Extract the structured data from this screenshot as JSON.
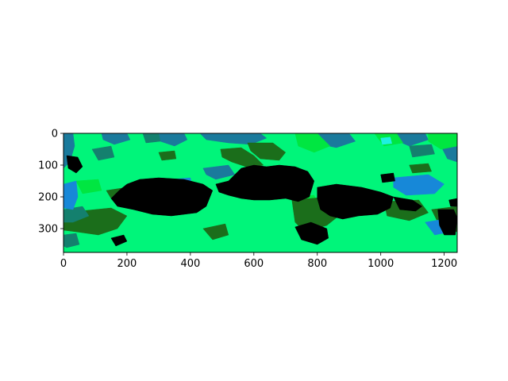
{
  "chart_data": {
    "type": "heatmap",
    "title": "",
    "xlabel": "",
    "ylabel": "",
    "xlim": [
      0,
      1241
    ],
    "ylim": [
      375,
      0
    ],
    "x_ticks": [
      0,
      200,
      400,
      600,
      800,
      1000,
      1200
    ],
    "y_ticks": [
      0,
      100,
      200,
      300
    ],
    "x_tick_labels": [
      "0",
      "200",
      "400",
      "600",
      "800",
      "1000",
      "1200"
    ],
    "y_tick_labels": [
      "0",
      "100",
      "200",
      "300"
    ],
    "grid": false,
    "legend": "none",
    "colors": {
      "bright_green": "#00f57a",
      "lime": "#00e641",
      "dark_green": "#1b6e1b",
      "teal": "#14806e",
      "steel_blue": "#1a7a9c",
      "azure": "#1788d8",
      "cyan": "#1ef0e0",
      "black": "#000000"
    },
    "regions": [
      {
        "class": "bright_green",
        "points": [
          [
            0,
            0
          ],
          [
            1241,
            0
          ],
          [
            1241,
            375
          ],
          [
            0,
            375
          ]
        ]
      },
      {
        "class": "steel_blue",
        "points": [
          [
            0,
            0
          ],
          [
            30,
            0
          ],
          [
            35,
            40
          ],
          [
            20,
            90
          ],
          [
            0,
            110
          ]
        ]
      },
      {
        "class": "steel_blue",
        "points": [
          [
            120,
            0
          ],
          [
            200,
            0
          ],
          [
            210,
            20
          ],
          [
            160,
            35
          ],
          [
            125,
            20
          ]
        ]
      },
      {
        "class": "steel_blue",
        "points": [
          [
            300,
            0
          ],
          [
            380,
            0
          ],
          [
            390,
            20
          ],
          [
            350,
            40
          ],
          [
            305,
            25
          ]
        ]
      },
      {
        "class": "steel_blue",
        "points": [
          [
            430,
            0
          ],
          [
            620,
            0
          ],
          [
            640,
            15
          ],
          [
            590,
            35
          ],
          [
            520,
            30
          ],
          [
            450,
            20
          ]
        ]
      },
      {
        "class": "steel_blue",
        "points": [
          [
            780,
            0
          ],
          [
            900,
            0
          ],
          [
            920,
            25
          ],
          [
            860,
            45
          ],
          [
            790,
            30
          ]
        ]
      },
      {
        "class": "steel_blue",
        "points": [
          [
            1050,
            0
          ],
          [
            1140,
            0
          ],
          [
            1150,
            20
          ],
          [
            1090,
            40
          ],
          [
            1055,
            25
          ]
        ]
      },
      {
        "class": "steel_blue",
        "points": [
          [
            1170,
            10
          ],
          [
            1241,
            5
          ],
          [
            1241,
            90
          ],
          [
            1210,
            80
          ],
          [
            1190,
            40
          ]
        ]
      },
      {
        "class": "steel_blue",
        "points": [
          [
            440,
            110
          ],
          [
            520,
            100
          ],
          [
            540,
            130
          ],
          [
            480,
            145
          ],
          [
            450,
            130
          ]
        ]
      },
      {
        "class": "lime",
        "points": [
          [
            730,
            0
          ],
          [
            800,
            0
          ],
          [
            840,
            40
          ],
          [
            790,
            60
          ],
          [
            740,
            40
          ]
        ]
      },
      {
        "class": "lime",
        "points": [
          [
            980,
            0
          ],
          [
            1050,
            0
          ],
          [
            1070,
            30
          ],
          [
            1010,
            40
          ]
        ]
      },
      {
        "class": "lime",
        "points": [
          [
            1150,
            0
          ],
          [
            1241,
            0
          ],
          [
            1241,
            40
          ],
          [
            1190,
            50
          ],
          [
            1150,
            25
          ]
        ]
      },
      {
        "class": "lime",
        "points": [
          [
            720,
            200
          ],
          [
            790,
            195
          ],
          [
            810,
            240
          ],
          [
            760,
            260
          ],
          [
            725,
            240
          ]
        ]
      },
      {
        "class": "lime",
        "points": [
          [
            40,
            150
          ],
          [
            110,
            145
          ],
          [
            120,
            180
          ],
          [
            60,
            190
          ]
        ]
      },
      {
        "class": "cyan",
        "points": [
          [
            1000,
            15
          ],
          [
            1030,
            12
          ],
          [
            1035,
            32
          ],
          [
            1005,
            35
          ]
        ]
      },
      {
        "class": "dark_green",
        "points": [
          [
            495,
            50
          ],
          [
            560,
            45
          ],
          [
            600,
            70
          ],
          [
            630,
            100
          ],
          [
            590,
            110
          ],
          [
            530,
            90
          ],
          [
            500,
            75
          ]
        ]
      },
      {
        "class": "dark_green",
        "points": [
          [
            0,
            250
          ],
          [
            150,
            235
          ],
          [
            200,
            260
          ],
          [
            170,
            300
          ],
          [
            110,
            320
          ],
          [
            40,
            310
          ],
          [
            0,
            305
          ]
        ]
      },
      {
        "class": "dark_green",
        "points": [
          [
            135,
            180
          ],
          [
            200,
            170
          ],
          [
            210,
            200
          ],
          [
            150,
            205
          ]
        ]
      },
      {
        "class": "dark_green",
        "points": [
          [
            580,
            30
          ],
          [
            660,
            30
          ],
          [
            700,
            60
          ],
          [
            680,
            85
          ],
          [
            620,
            80
          ],
          [
            590,
            55
          ]
        ]
      },
      {
        "class": "dark_green",
        "points": [
          [
            720,
            210
          ],
          [
            840,
            200
          ],
          [
            880,
            250
          ],
          [
            830,
            290
          ],
          [
            760,
            310
          ],
          [
            730,
            280
          ]
        ]
      },
      {
        "class": "dark_green",
        "points": [
          [
            1010,
            215
          ],
          [
            1120,
            210
          ],
          [
            1150,
            250
          ],
          [
            1090,
            275
          ],
          [
            1020,
            260
          ]
        ]
      },
      {
        "class": "dark_green",
        "points": [
          [
            1160,
            240
          ],
          [
            1241,
            230
          ],
          [
            1241,
            310
          ],
          [
            1190,
            300
          ]
        ]
      },
      {
        "class": "dark_green",
        "points": [
          [
            1090,
            100
          ],
          [
            1150,
            95
          ],
          [
            1160,
            120
          ],
          [
            1100,
            125
          ]
        ]
      },
      {
        "class": "dark_green",
        "points": [
          [
            440,
            300
          ],
          [
            510,
            285
          ],
          [
            520,
            320
          ],
          [
            470,
            335
          ]
        ]
      },
      {
        "class": "dark_green",
        "points": [
          [
            300,
            60
          ],
          [
            350,
            55
          ],
          [
            355,
            80
          ],
          [
            310,
            85
          ]
        ]
      },
      {
        "class": "teal",
        "points": [
          [
            0,
            240
          ],
          [
            60,
            230
          ],
          [
            80,
            260
          ],
          [
            30,
            280
          ],
          [
            0,
            280
          ]
        ]
      },
      {
        "class": "teal",
        "points": [
          [
            90,
            50
          ],
          [
            150,
            40
          ],
          [
            160,
            75
          ],
          [
            110,
            85
          ]
        ]
      },
      {
        "class": "teal",
        "points": [
          [
            250,
            0
          ],
          [
            300,
            0
          ],
          [
            305,
            25
          ],
          [
            260,
            30
          ]
        ]
      },
      {
        "class": "teal",
        "points": [
          [
            1090,
            40
          ],
          [
            1160,
            35
          ],
          [
            1170,
            65
          ],
          [
            1100,
            75
          ]
        ]
      },
      {
        "class": "teal",
        "points": [
          [
            0,
            320
          ],
          [
            40,
            315
          ],
          [
            50,
            350
          ],
          [
            10,
            360
          ],
          [
            0,
            355
          ]
        ]
      },
      {
        "class": "azure",
        "points": [
          [
            0,
            160
          ],
          [
            40,
            150
          ],
          [
            45,
            200
          ],
          [
            30,
            240
          ],
          [
            0,
            235
          ]
        ]
      },
      {
        "class": "azure",
        "points": [
          [
            1040,
            140
          ],
          [
            1150,
            130
          ],
          [
            1200,
            160
          ],
          [
            1170,
            190
          ],
          [
            1080,
            195
          ],
          [
            1040,
            170
          ]
        ]
      },
      {
        "class": "azure",
        "points": [
          [
            1140,
            280
          ],
          [
            1200,
            270
          ],
          [
            1220,
            310
          ],
          [
            1170,
            320
          ]
        ]
      },
      {
        "class": "azure",
        "points": [
          [
            340,
            145
          ],
          [
            400,
            140
          ],
          [
            405,
            170
          ],
          [
            350,
            175
          ]
        ]
      },
      {
        "class": "black",
        "points": [
          [
            10,
            70
          ],
          [
            45,
            75
          ],
          [
            60,
            105
          ],
          [
            40,
            125
          ],
          [
            15,
            110
          ]
        ]
      },
      {
        "class": "black",
        "points": [
          [
            200,
            160
          ],
          [
            240,
            145
          ],
          [
            300,
            140
          ],
          [
            380,
            145
          ],
          [
            440,
            160
          ],
          [
            470,
            180
          ],
          [
            450,
            230
          ],
          [
            420,
            250
          ],
          [
            340,
            260
          ],
          [
            280,
            255
          ],
          [
            220,
            240
          ],
          [
            170,
            230
          ],
          [
            150,
            205
          ],
          [
            175,
            180
          ]
        ]
      },
      {
        "class": "black",
        "points": [
          [
            480,
            160
          ],
          [
            520,
            150
          ],
          [
            560,
            110
          ],
          [
            600,
            100
          ],
          [
            640,
            105
          ],
          [
            680,
            100
          ],
          [
            730,
            105
          ],
          [
            770,
            120
          ],
          [
            790,
            150
          ],
          [
            775,
            200
          ],
          [
            740,
            215
          ],
          [
            700,
            205
          ],
          [
            650,
            210
          ],
          [
            600,
            210
          ],
          [
            560,
            205
          ],
          [
            520,
            195
          ],
          [
            490,
            185
          ]
        ]
      },
      {
        "class": "black",
        "points": [
          [
            800,
            170
          ],
          [
            860,
            160
          ],
          [
            940,
            170
          ],
          [
            1000,
            185
          ],
          [
            1040,
            200
          ],
          [
            1030,
            235
          ],
          [
            990,
            255
          ],
          [
            930,
            260
          ],
          [
            880,
            270
          ],
          [
            840,
            260
          ],
          [
            810,
            240
          ],
          [
            800,
            205
          ]
        ]
      },
      {
        "class": "black",
        "points": [
          [
            1040,
            200
          ],
          [
            1100,
            210
          ],
          [
            1130,
            230
          ],
          [
            1110,
            245
          ],
          [
            1060,
            240
          ]
        ]
      },
      {
        "class": "black",
        "points": [
          [
            1180,
            240
          ],
          [
            1230,
            240
          ],
          [
            1241,
            265
          ],
          [
            1235,
            320
          ],
          [
            1200,
            320
          ],
          [
            1185,
            290
          ]
        ]
      },
      {
        "class": "black",
        "points": [
          [
            730,
            295
          ],
          [
            780,
            280
          ],
          [
            830,
            300
          ],
          [
            835,
            330
          ],
          [
            800,
            350
          ],
          [
            750,
            335
          ]
        ]
      },
      {
        "class": "black",
        "points": [
          [
            150,
            330
          ],
          [
            190,
            320
          ],
          [
            200,
            340
          ],
          [
            165,
            355
          ]
        ]
      },
      {
        "class": "black",
        "points": [
          [
            1000,
            130
          ],
          [
            1040,
            125
          ],
          [
            1045,
            150
          ],
          [
            1005,
            155
          ]
        ]
      },
      {
        "class": "black",
        "points": [
          [
            370,
            200
          ],
          [
            410,
            195
          ],
          [
            415,
            215
          ],
          [
            375,
            218
          ]
        ]
      },
      {
        "class": "black",
        "points": [
          [
            1215,
            210
          ],
          [
            1241,
            205
          ],
          [
            1241,
            230
          ],
          [
            1220,
            230
          ]
        ]
      }
    ]
  }
}
